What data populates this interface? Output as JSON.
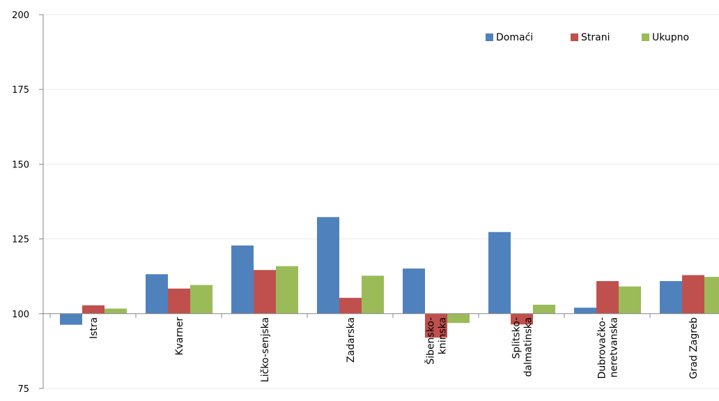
{
  "chart_data": {
    "type": "bar",
    "title": "",
    "xlabel": "",
    "ylabel": "",
    "ylim": [
      75,
      200
    ],
    "baseline": 100,
    "yticks": [
      75,
      100,
      125,
      150,
      175,
      200
    ],
    "grid": true,
    "legend_position": "top-right",
    "categories": [
      "Istra",
      "Kvarner",
      "Ličko-senjska",
      "Zadarska",
      "Šibensko-kninska",
      "Splitsko-dalmatinska",
      "Dubrovačko-neretvanska",
      "Grad Zagreb"
    ],
    "category_label_lines": [
      [
        "Istra"
      ],
      [
        "Kvarner"
      ],
      [
        "Ličko-senjska"
      ],
      [
        "Zadarska"
      ],
      [
        "Šibensko-",
        "kninska"
      ],
      [
        "Splitsko-",
        "dalmatinska"
      ],
      [
        "Dubrovačko-",
        "neretvanska"
      ],
      [
        "Grad Zagreb"
      ]
    ],
    "series": [
      {
        "name": "Domaći",
        "color": "#4f81bd",
        "values": [
          96.3,
          113.2,
          122.8,
          132.3,
          115.1,
          127.3,
          102.0,
          110.9
        ]
      },
      {
        "name": "Strani",
        "color": "#c0504d",
        "values": [
          102.8,
          108.4,
          114.6,
          105.3,
          92.0,
          96.4,
          110.9,
          112.9
        ]
      },
      {
        "name": "Ukupno",
        "color": "#9bbb59",
        "values": [
          101.7,
          109.6,
          115.9,
          112.7,
          96.9,
          103.0,
          109.1,
          112.3
        ]
      }
    ]
  }
}
